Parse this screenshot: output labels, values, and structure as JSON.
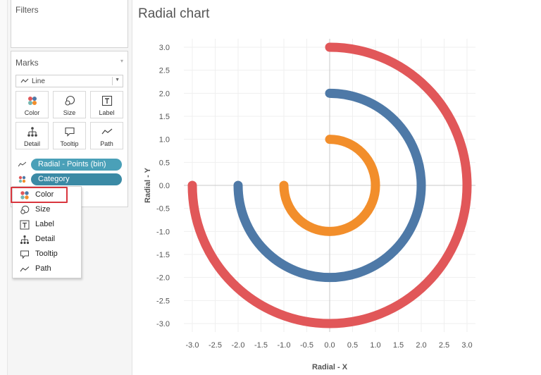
{
  "filters_card": {
    "title": "Filters"
  },
  "marks_card": {
    "title": "Marks",
    "mark_type": {
      "label": "Line",
      "icon": "line-icon"
    },
    "buttons": [
      {
        "id": "color",
        "label": "Color",
        "icon": "color-dots-icon"
      },
      {
        "id": "size",
        "label": "Size",
        "icon": "size-icon"
      },
      {
        "id": "label",
        "label": "Label",
        "icon": "text-label-icon"
      },
      {
        "id": "detail",
        "label": "Detail",
        "icon": "detail-hierarchy-icon"
      },
      {
        "id": "tooltip",
        "label": "Tooltip",
        "icon": "tooltip-icon"
      },
      {
        "id": "path",
        "label": "Path",
        "icon": "path-icon"
      }
    ],
    "pills": [
      {
        "label": "Radial - Points (bin)",
        "icon": "path-icon"
      },
      {
        "label": "Category",
        "icon": "color-dots-icon"
      }
    ]
  },
  "context_menu": {
    "highlighted": "Color",
    "items": [
      {
        "label": "Color",
        "icon": "color-dots-icon"
      },
      {
        "label": "Size",
        "icon": "size-icon"
      },
      {
        "label": "Label",
        "icon": "text-label-icon"
      },
      {
        "label": "Detail",
        "icon": "detail-hierarchy-icon"
      },
      {
        "label": "Tooltip",
        "icon": "tooltip-icon"
      },
      {
        "label": "Path",
        "icon": "path-icon"
      }
    ]
  },
  "colors": {
    "series_red": "#e15759",
    "series_blue": "#4e79a7",
    "series_orange": "#f28e2b",
    "highlight_box": "#d9363e",
    "pill": "#3b8aa5"
  },
  "chart_data": {
    "type": "line",
    "title": "Radial chart",
    "xlabel": "Radial - X",
    "ylabel": "Radial - Y",
    "xlim": [
      -3.0,
      3.0
    ],
    "ylim": [
      -3.0,
      3.0
    ],
    "x_ticks": [
      "-3.0",
      "-2.5",
      "-2.0",
      "-1.5",
      "-1.0",
      "-0.5",
      "0.0",
      "0.5",
      "1.0",
      "1.5",
      "2.0",
      "2.5",
      "3.0"
    ],
    "y_ticks": [
      "3.0",
      "2.5",
      "2.0",
      "1.5",
      "1.0",
      "0.5",
      "0.0",
      "-0.5",
      "-1.0",
      "-1.5",
      "-2.0",
      "-2.5",
      "-3.0"
    ],
    "grid": true,
    "legend": "none",
    "series": [
      {
        "radius": 3.0,
        "start_angle_deg": 90,
        "end_angle_deg": 180,
        "direction": "clockwise",
        "color": "#e15759"
      },
      {
        "radius": 2.0,
        "start_angle_deg": 90,
        "end_angle_deg": 180,
        "direction": "clockwise",
        "color": "#4e79a7"
      },
      {
        "radius": 1.0,
        "start_angle_deg": 90,
        "end_angle_deg": 180,
        "direction": "clockwise",
        "color": "#f28e2b"
      }
    ]
  }
}
